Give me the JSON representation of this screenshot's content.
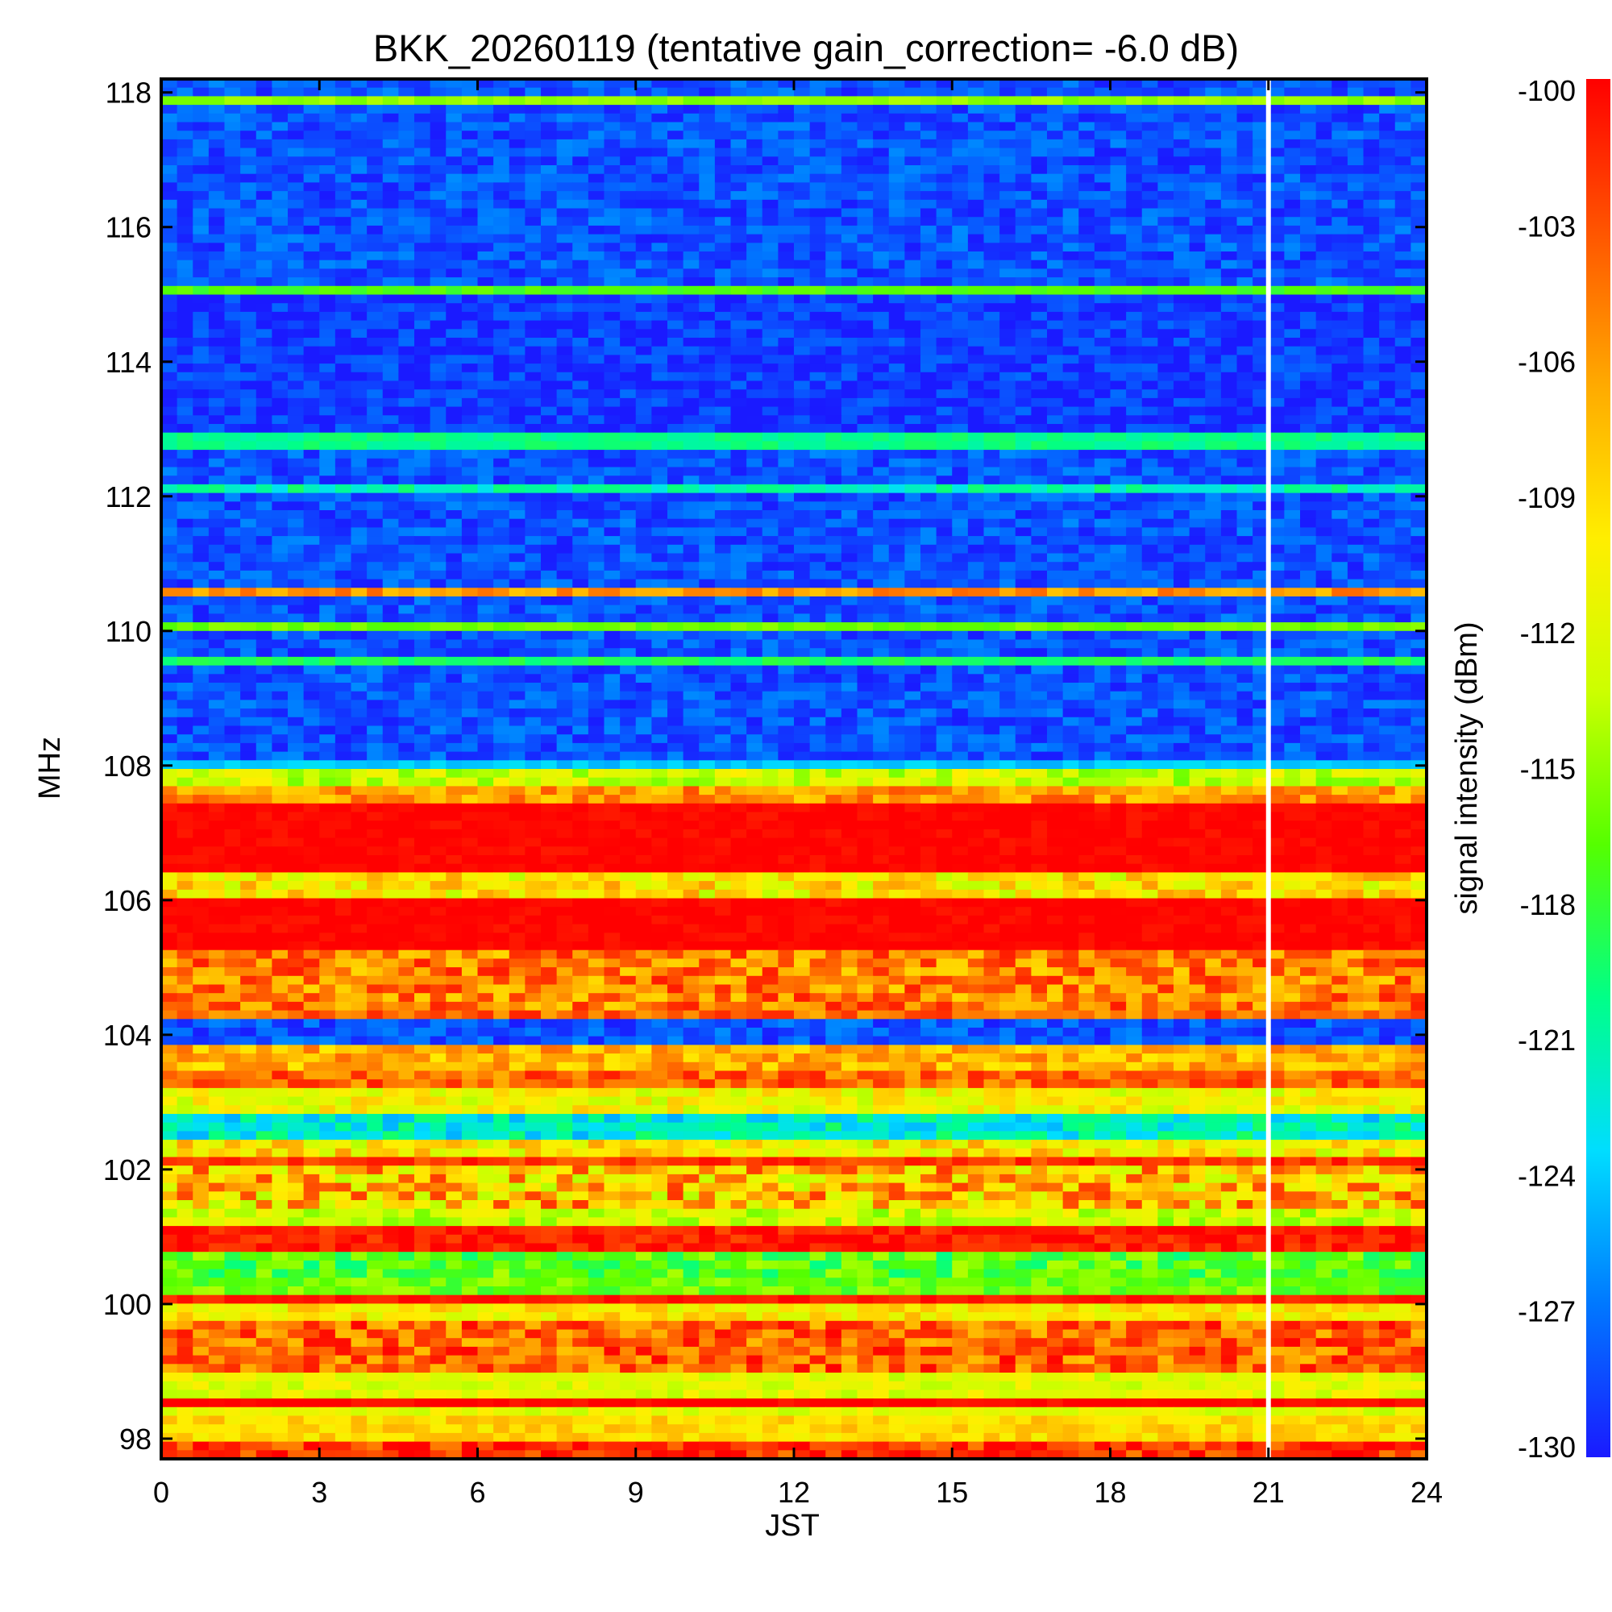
{
  "chart_data": {
    "type": "heatmap",
    "title": "BKK_20260119 (tentative gain_correction= -6.0 dB)",
    "xlabel": "JST",
    "ylabel": "MHz",
    "xlim": [
      0,
      24
    ],
    "ylim": [
      97.7,
      118.2
    ],
    "x_ticks": [
      "0",
      "3",
      "6",
      "9",
      "12",
      "15",
      "18",
      "21",
      "24"
    ],
    "x_tick_values": [
      0,
      3,
      6,
      9,
      12,
      15,
      18,
      21,
      24
    ],
    "y_ticks": [
      "98",
      "100",
      "102",
      "104",
      "106",
      "108",
      "110",
      "112",
      "114",
      "116",
      "118"
    ],
    "y_tick_values": [
      98,
      100,
      102,
      104,
      106,
      108,
      110,
      112,
      114,
      116,
      118
    ],
    "colorbar": {
      "label": "signal intensity (dBm)",
      "min": -130,
      "max": -100,
      "ticks": [
        "-100",
        "-103",
        "-106",
        "-109",
        "-112",
        "-115",
        "-118",
        "-121",
        "-124",
        "-127",
        "-130"
      ],
      "tick_values": [
        -100,
        -103,
        -106,
        -109,
        -112,
        -115,
        -118,
        -121,
        -124,
        -127,
        -130
      ],
      "colormap": [
        "#1a1aff",
        "#0078ff",
        "#00ddff",
        "#00ff88",
        "#55ff00",
        "#ccff00",
        "#ffee00",
        "#ffaa00",
        "#ff5500",
        "#ff0000"
      ]
    },
    "gap_at_jst": 21.0,
    "bands": [
      {
        "f0": 97.7,
        "f1": 98.0,
        "level": -102,
        "var": 3
      },
      {
        "f0": 98.0,
        "f1": 98.3,
        "level": -109,
        "var": 2
      },
      {
        "f0": 98.3,
        "f1": 98.5,
        "level": -112,
        "var": 2
      },
      {
        "f0": 98.5,
        "f1": 98.65,
        "level": -100,
        "var": 1
      },
      {
        "f0": 98.65,
        "f1": 99.0,
        "level": -112,
        "var": 2
      },
      {
        "f0": 99.0,
        "f1": 99.7,
        "level": -104,
        "var": 4
      },
      {
        "f0": 99.7,
        "f1": 99.95,
        "level": -110,
        "var": 3
      },
      {
        "f0": 99.95,
        "f1": 100.1,
        "level": -101,
        "var": 1
      },
      {
        "f0": 100.1,
        "f1": 100.4,
        "level": -116,
        "var": 2
      },
      {
        "f0": 100.4,
        "f1": 100.8,
        "level": -117,
        "var": 3
      },
      {
        "f0": 100.8,
        "f1": 101.2,
        "level": -101,
        "var": 2
      },
      {
        "f0": 101.2,
        "f1": 101.4,
        "level": -113,
        "var": 3
      },
      {
        "f0": 101.4,
        "f1": 102.0,
        "level": -108,
        "var": 6
      },
      {
        "f0": 102.0,
        "f1": 102.2,
        "level": -102,
        "var": 2
      },
      {
        "f0": 102.2,
        "f1": 102.5,
        "level": -110,
        "var": 4
      },
      {
        "f0": 102.5,
        "f1": 102.8,
        "level": -122,
        "var": 3
      },
      {
        "f0": 102.8,
        "f1": 103.2,
        "level": -111,
        "var": 3
      },
      {
        "f0": 103.2,
        "f1": 103.5,
        "level": -104,
        "var": 3
      },
      {
        "f0": 103.5,
        "f1": 103.9,
        "level": -107,
        "var": 3
      },
      {
        "f0": 103.9,
        "f1": 104.2,
        "level": -128,
        "var": 2
      },
      {
        "f0": 104.2,
        "f1": 104.4,
        "level": -104,
        "var": 3
      },
      {
        "f0": 104.4,
        "f1": 105.2,
        "level": -105,
        "var": 4
      },
      {
        "f0": 105.2,
        "f1": 106.0,
        "level": -100,
        "var": 1
      },
      {
        "f0": 106.0,
        "f1": 106.4,
        "level": -110,
        "var": 4
      },
      {
        "f0": 106.4,
        "f1": 107.5,
        "level": -100,
        "var": 1
      },
      {
        "f0": 107.5,
        "f1": 107.7,
        "level": -106,
        "var": 3
      },
      {
        "f0": 107.7,
        "f1": 107.95,
        "level": -113,
        "var": 3
      },
      {
        "f0": 107.95,
        "f1": 108.05,
        "level": -124,
        "var": 1
      },
      {
        "f0": 108.05,
        "f1": 109.5,
        "level": -128,
        "var": 2
      },
      {
        "f0": 109.5,
        "f1": 109.65,
        "level": -119,
        "var": 1
      },
      {
        "f0": 109.65,
        "f1": 109.95,
        "level": -128,
        "var": 2
      },
      {
        "f0": 109.95,
        "f1": 110.1,
        "level": -116,
        "var": 1
      },
      {
        "f0": 110.1,
        "f1": 110.5,
        "level": -128,
        "var": 2
      },
      {
        "f0": 110.5,
        "f1": 110.65,
        "level": -106,
        "var": 2
      },
      {
        "f0": 110.65,
        "f1": 112.0,
        "level": -128,
        "var": 2
      },
      {
        "f0": 112.0,
        "f1": 112.2,
        "level": -121,
        "var": 2
      },
      {
        "f0": 112.2,
        "f1": 112.7,
        "level": -128,
        "var": 2
      },
      {
        "f0": 112.7,
        "f1": 112.9,
        "level": -120,
        "var": 1
      },
      {
        "f0": 112.9,
        "f1": 114.95,
        "level": -129,
        "var": 2
      },
      {
        "f0": 114.95,
        "f1": 115.1,
        "level": -117,
        "var": 1
      },
      {
        "f0": 115.1,
        "f1": 117.8,
        "level": -128,
        "var": 2
      },
      {
        "f0": 117.8,
        "f1": 117.95,
        "level": -115,
        "var": 1
      },
      {
        "f0": 117.95,
        "f1": 118.2,
        "level": -128,
        "var": 2
      }
    ]
  }
}
